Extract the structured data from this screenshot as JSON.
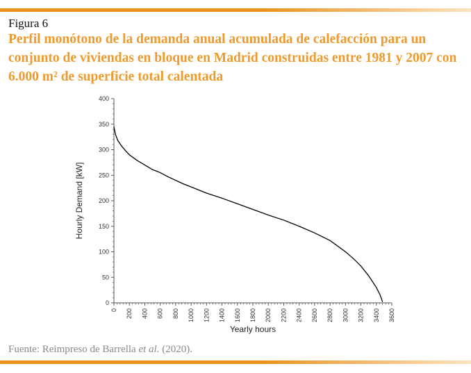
{
  "figure": {
    "label": "Figura 6",
    "title": "Perfil monótono de la demanda anual acumulada de calefacción para un conjunto de viviendas en bloque en Madrid construidas entre 1981 y 2007 con 6.000 m² de superficie total calentada"
  },
  "source": {
    "prefix": "Fuente: Reimpreso de Barrella ",
    "italic": "et al.",
    "suffix": " (2020)."
  },
  "colors": {
    "accent": "#ee9a2c",
    "band_start": "#ec8f1a",
    "band_end": "#fbe3c0",
    "line": "#000000",
    "axis": "#555555"
  },
  "chart_data": {
    "type": "line",
    "xlabel": "Yearly hours",
    "ylabel": "Hourly Demand [kW]",
    "xlim": [
      0,
      3600
    ],
    "ylim": [
      0,
      400
    ],
    "x_ticks": [
      0,
      200,
      400,
      600,
      800,
      1000,
      1200,
      1400,
      1600,
      1800,
      2000,
      2200,
      2400,
      2600,
      2800,
      3000,
      3200,
      3400,
      3600
    ],
    "y_ticks": [
      0,
      50,
      100,
      150,
      200,
      250,
      300,
      350,
      400
    ],
    "grid": false,
    "series": [
      {
        "x": [
          0,
          20,
          50,
          100,
          150,
          200,
          300,
          400,
          500,
          600,
          700,
          800,
          900,
          1000,
          1200,
          1400,
          1600,
          1800,
          2000,
          2200,
          2400,
          2600,
          2800,
          3000,
          3100,
          3200,
          3300,
          3400,
          3450,
          3480
        ],
        "values": [
          345,
          330,
          318,
          307,
          298,
          290,
          279,
          270,
          261,
          255,
          247,
          240,
          233,
          227,
          215,
          205,
          194,
          183,
          172,
          162,
          150,
          137,
          122,
          100,
          87,
          72,
          53,
          30,
          15,
          2
        ]
      }
    ]
  }
}
